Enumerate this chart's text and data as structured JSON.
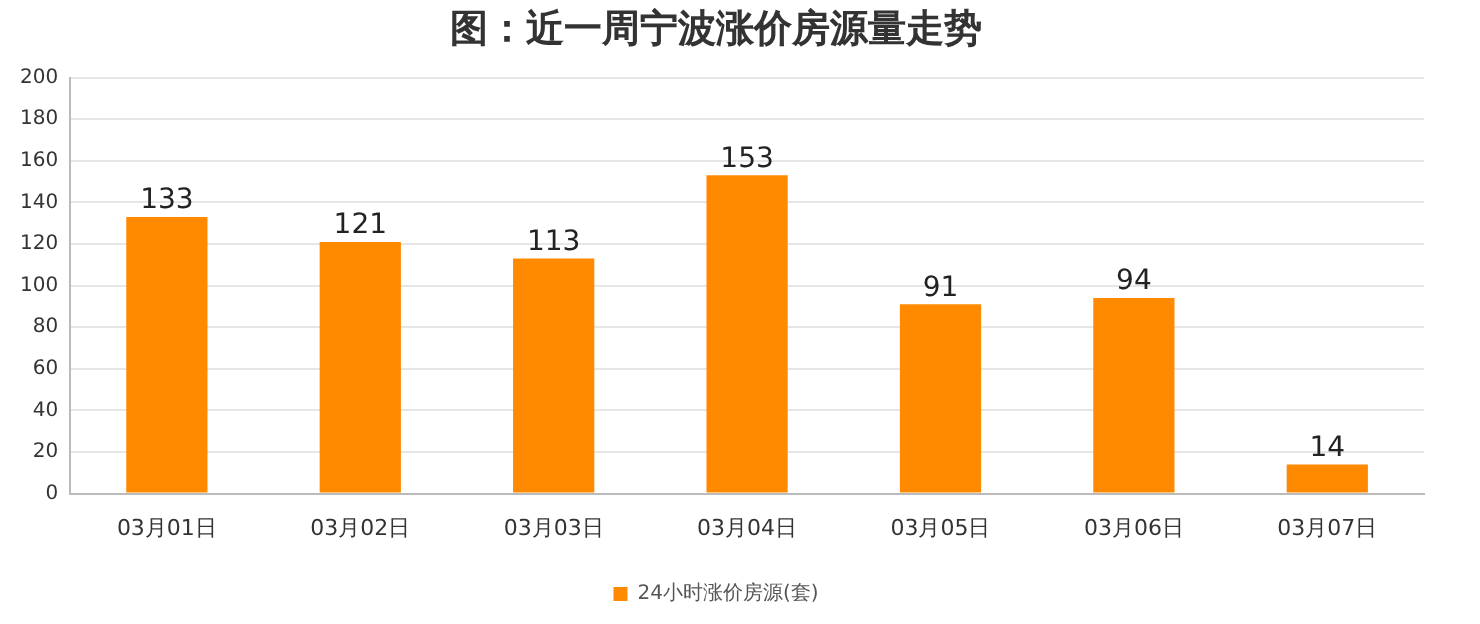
{
  "chart_data": {
    "type": "bar",
    "title": "图：近一周宁波涨价房源量走势",
    "categories": [
      "03月01日",
      "03月02日",
      "03月03日",
      "03月04日",
      "03月05日",
      "03月06日",
      "03月07日"
    ],
    "series": [
      {
        "name": "24小时涨价房源(套)",
        "color": "#ff8a00",
        "values": [
          133,
          121,
          113,
          153,
          91,
          94,
          14
        ]
      }
    ],
    "ylim": [
      0,
      200
    ],
    "yticks": [
      0,
      20,
      40,
      60,
      80,
      100,
      120,
      140,
      160,
      180,
      200
    ],
    "grid": "y",
    "legend": "bottom",
    "data_labels": true
  }
}
